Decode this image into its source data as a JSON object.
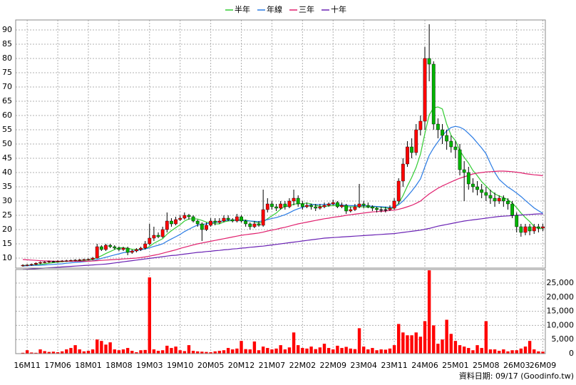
{
  "chart_data": {
    "type": "candlestick",
    "categories": [
      null,
      "16M11",
      null,
      null,
      null,
      null,
      null,
      null,
      "17M06",
      null,
      null,
      null,
      null,
      null,
      null,
      "18M01",
      null,
      null,
      null,
      null,
      null,
      null,
      "18M08",
      null,
      null,
      null,
      null,
      null,
      null,
      "19M03",
      null,
      null,
      null,
      null,
      null,
      null,
      "19M10",
      null,
      null,
      null,
      null,
      null,
      null,
      "20M05",
      null,
      null,
      null,
      null,
      null,
      null,
      "20M12",
      null,
      null,
      null,
      null,
      null,
      null,
      "21M07",
      null,
      null,
      null,
      null,
      null,
      null,
      "22M02",
      null,
      null,
      null,
      null,
      null,
      null,
      "22M09",
      null,
      null,
      null,
      null,
      null,
      null,
      "23M04",
      null,
      null,
      null,
      null,
      null,
      null,
      "23M11",
      null,
      null,
      null,
      null,
      null,
      null,
      "24M06",
      null,
      null,
      null,
      null,
      null,
      null,
      "25M01",
      null,
      null,
      null,
      null,
      null,
      null,
      "25M08",
      null,
      null,
      null,
      null,
      null,
      null,
      "26M03",
      null,
      null,
      null,
      null,
      null,
      "26M09"
    ],
    "open": [
      7.3,
      7.5,
      7.6,
      7.8,
      8.2,
      8.5,
      8.6,
      8.8,
      8.8,
      8.9,
      9.0,
      9.1,
      9.2,
      9.3,
      9.4,
      9.5,
      9.6,
      10.0,
      14.0,
      13.0,
      14.5,
      14.0,
      13.5,
      13.0,
      13.5,
      12.0,
      12.5,
      13.0,
      13.5,
      15.0,
      17.0,
      18.0,
      17.5,
      20.0,
      23.0,
      22.0,
      23.5,
      24.0,
      25.0,
      24.5,
      23.0,
      22.0,
      20.0,
      21.5,
      23.0,
      22.5,
      23.0,
      24.0,
      23.5,
      23.0,
      24.5,
      23.0,
      22.0,
      21.0,
      22.0,
      21.5,
      27.0,
      29.0,
      28.0,
      27.5,
      29.0,
      28.0,
      30.0,
      31.0,
      29.0,
      28.0,
      28.5,
      28.0,
      27.5,
      28.0,
      28.5,
      29.0,
      29.5,
      28.0,
      28.5,
      26.5,
      27.0,
      28.0,
      29.0,
      28.5,
      28.0,
      27.5,
      27.0,
      27.0,
      27.0,
      27.5,
      30,
      37,
      43,
      49,
      47,
      55,
      58,
      80,
      78,
      57,
      55,
      53,
      51,
      49,
      48,
      41,
      40,
      36,
      35,
      34,
      33,
      32,
      31,
      30,
      31,
      30,
      29,
      25,
      21,
      19,
      21,
      19.5,
      21,
      20.5
    ],
    "high": [
      7.8,
      7.9,
      8.1,
      8.5,
      8.8,
      8.9,
      9.1,
      9.1,
      9.2,
      9.3,
      9.4,
      9.5,
      9.6,
      9.7,
      9.8,
      9.9,
      10.4,
      15.0,
      14.5,
      15.0,
      15.0,
      14.5,
      14.0,
      14.0,
      14.0,
      13.0,
      13.5,
      14.0,
      16.0,
      22.0,
      21.0,
      19.0,
      21.0,
      26.0,
      24.0,
      24.5,
      25.0,
      26.0,
      25.5,
      25.0,
      23.5,
      22.5,
      22.5,
      24.0,
      24.0,
      24.0,
      25.0,
      25.0,
      24.0,
      25.5,
      25.0,
      23.5,
      22.5,
      23.0,
      23.0,
      34.0,
      31.0,
      30.0,
      29.0,
      30.0,
      30.0,
      31.0,
      34.0,
      32.0,
      30.0,
      29.5,
      29.0,
      29.0,
      29.0,
      29.5,
      29.5,
      30.5,
      30.0,
      29.5,
      29.0,
      28.0,
      29.0,
      36.0,
      30.0,
      29.5,
      28.5,
      28.0,
      28.0,
      28.0,
      28.5,
      31,
      38,
      45,
      51,
      52,
      57,
      60,
      84,
      92,
      79,
      59,
      57,
      55,
      53,
      51,
      50,
      44,
      42,
      38,
      37,
      36,
      35,
      34,
      33,
      32,
      32,
      31,
      30,
      26,
      22,
      22,
      22,
      22,
      22,
      22
    ],
    "low": [
      7.0,
      7.2,
      7.3,
      7.5,
      7.9,
      8.2,
      8.3,
      8.5,
      8.5,
      8.6,
      8.7,
      8.8,
      8.9,
      9.0,
      9.1,
      9.2,
      9.3,
      9.8,
      12.5,
      12.5,
      13.5,
      13.0,
      12.5,
      12.5,
      11.0,
      11.5,
      12.0,
      12.5,
      13.0,
      14.5,
      16.0,
      17.0,
      17.0,
      19.0,
      21.0,
      21.5,
      23.0,
      23.5,
      23.5,
      22.5,
      21.0,
      16.0,
      19.5,
      21.0,
      21.5,
      22.0,
      22.5,
      23.0,
      22.5,
      22.5,
      22.5,
      21.0,
      20.0,
      20.5,
      21.0,
      21.0,
      26.0,
      27.0,
      26.5,
      27.0,
      27.0,
      27.5,
      28.5,
      28.0,
      27.0,
      27.5,
      27.0,
      26.5,
      27.0,
      27.5,
      28.0,
      28.5,
      27.5,
      27.5,
      25.5,
      26.0,
      26.5,
      27.5,
      27.5,
      27.5,
      26.5,
      26.0,
      26.0,
      26.0,
      26.5,
      27,
      29,
      35,
      42,
      45,
      46,
      53,
      55,
      72,
      55,
      52,
      50,
      48,
      47,
      45,
      39,
      30,
      34,
      33,
      32,
      31,
      30,
      29,
      28,
      29,
      28,
      27,
      24,
      19,
      17.5,
      18,
      18,
      18.5,
      19,
      19.5
    ],
    "close": [
      7.5,
      7.6,
      7.8,
      8.2,
      8.5,
      8.6,
      8.8,
      8.8,
      8.9,
      9.0,
      9.1,
      9.2,
      9.3,
      9.4,
      9.5,
      9.6,
      10.0,
      14.0,
      13.0,
      14.5,
      14.0,
      13.5,
      13.0,
      13.5,
      12.0,
      12.5,
      13.0,
      13.5,
      15.0,
      17.0,
      18.0,
      17.5,
      20.0,
      23.0,
      22.0,
      23.5,
      24.0,
      25.0,
      24.5,
      23.0,
      22.0,
      20.0,
      21.5,
      23.0,
      22.5,
      23.0,
      24.0,
      23.5,
      23.0,
      24.5,
      23.0,
      22.0,
      21.0,
      22.0,
      21.5,
      27.0,
      29.0,
      28.0,
      27.5,
      29.0,
      28.0,
      30.0,
      31.0,
      29.0,
      28.0,
      28.5,
      28.0,
      27.5,
      28.0,
      28.5,
      29.0,
      29.5,
      28.0,
      28.5,
      26.5,
      27.0,
      28.0,
      29.0,
      28.5,
      28.0,
      27.5,
      27.0,
      27.0,
      27.0,
      27.5,
      30,
      37,
      43,
      49,
      47,
      55,
      58,
      80,
      78,
      57,
      55,
      53,
      51,
      49,
      48,
      41,
      40,
      36,
      35,
      34,
      33,
      32,
      31,
      30,
      31,
      30,
      29,
      25,
      21,
      19,
      21,
      19.5,
      21,
      20.5,
      21
    ],
    "up_color": "#ff0000",
    "down_color": "#00b400",
    "series": [
      {
        "name": "半年",
        "color": "#33cc33",
        "values": [
          7.4,
          7.45,
          7.5,
          7.6,
          7.8,
          8.0,
          8.2,
          8.4,
          8.6,
          8.75,
          8.85,
          8.95,
          9.05,
          9.15,
          9.25,
          9.35,
          9.5,
          10.2,
          10.8,
          11.6,
          12.3,
          13.0,
          13.7,
          13.6,
          13.4,
          13.1,
          13.0,
          13.0,
          13.3,
          14.1,
          15.2,
          16.0,
          16.8,
          18.4,
          19.6,
          20.7,
          21.7,
          23.0,
          23.7,
          23.8,
          23.7,
          23.2,
          22.6,
          22.3,
          22.0,
          22.0,
          22.7,
          23.0,
          23.2,
          23.4,
          23.4,
          23.3,
          23.0,
          22.7,
          22.3,
          22.7,
          23.8,
          24.8,
          25.8,
          27.2,
          28.1,
          28.3,
          28.9,
          29.1,
          29.1,
          29.3,
          29.0,
          28.5,
          28.2,
          28.1,
          28.3,
          28.4,
          28.4,
          28.4,
          28.0,
          28.0,
          28.0,
          28.0,
          28.0,
          27.8,
          27.9,
          28.0,
          27.8,
          27.6,
          27.4,
          27.6,
          29.2,
          31.9,
          35.3,
          38.3,
          41.8,
          46.5,
          53.7,
          60.2,
          62.7,
          63.0,
          62.3,
          57.0,
          53.0,
          51.2,
          47.7,
          45.3,
          43.3,
          40.7,
          38.9,
          36.8,
          35.3,
          33.7,
          32.5,
          31.8,
          31.2,
          30.5,
          29.3,
          27.7,
          25.8,
          24.2,
          22.8,
          21.1,
          20.3,
          20.5
        ]
      },
      {
        "name": "年線",
        "color": "#2a7be4",
        "values": [
          7.2,
          7.3,
          7.4,
          7.45,
          7.5,
          7.6,
          7.7,
          7.8,
          7.9,
          8.0,
          8.2,
          8.35,
          8.5,
          8.6,
          8.75,
          8.9,
          9.05,
          9.5,
          9.9,
          10.3,
          10.7,
          11.1,
          11.5,
          11.9,
          12.1,
          12.4,
          12.7,
          12.9,
          13.2,
          13.6,
          14.1,
          14.5,
          15.0,
          15.9,
          16.7,
          17.5,
          18.3,
          19.3,
          20.1,
          20.9,
          21.6,
          21.8,
          22.0,
          22.4,
          22.5,
          22.8,
          23.1,
          23.3,
          23.3,
          23.3,
          23.2,
          23.1,
          23.0,
          22.9,
          22.8,
          23.1,
          23.5,
          23.9,
          24.2,
          24.7,
          25.2,
          25.9,
          26.7,
          27.3,
          27.8,
          28.3,
          28.8,
          28.8,
          28.8,
          28.8,
          28.9,
          29.0,
          28.8,
          28.6,
          28.5,
          28.4,
          28.4,
          28.4,
          28.4,
          28.3,
          28.2,
          28.1,
          28.0,
          27.9,
          27.8,
          27.9,
          28.7,
          30.0,
          31.7,
          33.5,
          35.5,
          37.8,
          42.0,
          46.0,
          48.6,
          50.8,
          52.9,
          54.6,
          55.8,
          56.2,
          55.9,
          55.1,
          53.7,
          52.2,
          50.4,
          48.6,
          46.6,
          43.2,
          40.0,
          37.6,
          36.2,
          34.9,
          33.9,
          32.8,
          31.6,
          30.2,
          28.9,
          27.6,
          26.6,
          25.7
        ]
      },
      {
        "name": "三年",
        "color": "#e0206e",
        "values": [
          9.5,
          9.4,
          9.3,
          9.2,
          9.1,
          9.0,
          9.0,
          8.9,
          8.9,
          8.9,
          8.9,
          8.9,
          8.9,
          8.9,
          8.9,
          8.9,
          9.0,
          9.1,
          9.2,
          9.3,
          9.4,
          9.5,
          9.6,
          9.7,
          9.8,
          9.9,
          10.0,
          10.2,
          10.4,
          10.7,
          11.0,
          11.3,
          11.7,
          12.1,
          12.5,
          12.9,
          13.4,
          13.8,
          14.2,
          14.6,
          15.0,
          15.3,
          15.6,
          15.9,
          16.2,
          16.5,
          16.8,
          17.1,
          17.4,
          17.7,
          18.0,
          18.2,
          18.4,
          18.6,
          18.8,
          19.1,
          19.5,
          19.8,
          20.1,
          20.5,
          20.8,
          21.2,
          21.6,
          22.0,
          22.3,
          22.6,
          22.9,
          23.2,
          23.5,
          23.8,
          24.0,
          24.3,
          24.5,
          24.7,
          25.0,
          25.2,
          25.4,
          25.6,
          25.8,
          26.0,
          26.2,
          26.3,
          26.4,
          26.5,
          26.7,
          26.8,
          27.1,
          27.5,
          28.0,
          28.5,
          29.2,
          30.0,
          31.3,
          32.5,
          33.5,
          34.5,
          35.3,
          36.0,
          36.7,
          37.4,
          38.0,
          38.5,
          39.0,
          39.5,
          39.8,
          40.0,
          40.2,
          40.3,
          40.4,
          40.5,
          40.5,
          40.4,
          40.3,
          40.1,
          39.9,
          39.6,
          39.4,
          39.2,
          39.1,
          38.9
        ]
      },
      {
        "name": "十年",
        "color": "#6a22b4",
        "values": [
          6.0,
          6.1,
          6.2,
          6.3,
          6.4,
          6.5,
          6.6,
          6.7,
          6.8,
          6.9,
          7.0,
          7.1,
          7.2,
          7.3,
          7.4,
          7.5,
          7.6,
          7.7,
          7.8,
          7.9,
          8.1,
          8.3,
          8.5,
          8.7,
          8.9,
          9.1,
          9.3,
          9.5,
          9.7,
          9.9,
          10.1,
          10.3,
          10.5,
          10.7,
          10.9,
          11.0,
          11.2,
          11.4,
          11.6,
          11.8,
          12.0,
          12.1,
          12.3,
          12.4,
          12.6,
          12.7,
          12.9,
          13.0,
          13.2,
          13.3,
          13.5,
          13.6,
          13.8,
          13.9,
          14.1,
          14.2,
          14.4,
          14.6,
          14.8,
          15.0,
          15.2,
          15.4,
          15.6,
          15.8,
          16.0,
          16.2,
          16.4,
          16.6,
          16.8,
          17.0,
          17.1,
          17.2,
          17.3,
          17.4,
          17.5,
          17.6,
          17.7,
          17.8,
          17.9,
          18.0,
          18.1,
          18.2,
          18.3,
          18.4,
          18.5,
          18.6,
          18.8,
          19.0,
          19.2,
          19.4,
          19.6,
          19.8,
          20.1,
          20.4,
          20.8,
          21.2,
          21.5,
          21.8,
          22.1,
          22.4,
          22.7,
          23.0,
          23.2,
          23.4,
          23.6,
          23.8,
          24.0,
          24.2,
          24.4,
          24.6,
          24.7,
          24.8,
          24.9,
          25.0,
          25.1,
          25.2,
          25.3,
          25.4,
          25.5,
          25.5
        ]
      }
    ],
    "ylim": [
      6.5,
      93.5
    ],
    "yticks": [
      10,
      15,
      20,
      25,
      30,
      35,
      40,
      45,
      50,
      55,
      60,
      65,
      70,
      75,
      80,
      85,
      90
    ],
    "grid": true,
    "volume": {
      "color": "#ff0000",
      "values": [
        300,
        1200,
        400,
        300,
        1500,
        900,
        600,
        700,
        500,
        800,
        1500,
        2000,
        3000,
        1500,
        800,
        1000,
        1500,
        5000,
        4500,
        3200,
        4000,
        1500,
        1200,
        1500,
        2000,
        1000,
        500,
        1200,
        1300,
        27000,
        1500,
        1000,
        1200,
        2800,
        2000,
        2500,
        1200,
        900,
        3000,
        1000,
        800,
        700,
        600,
        500,
        800,
        1000,
        1200,
        2000,
        1500,
        1800,
        4500,
        1600,
        1500,
        4300,
        1200,
        2500,
        2000,
        1500,
        1800,
        3000,
        1500,
        2200,
        7500,
        3000,
        2000,
        1800,
        2500,
        1600,
        2200,
        3500,
        2000,
        1500,
        2800,
        2000,
        2400,
        1800,
        1600,
        9000,
        2500,
        1500,
        2000,
        1200,
        1500,
        1400,
        1800,
        3000,
        10500,
        7500,
        6500,
        6500,
        7500,
        6000,
        11500,
        29500,
        10000,
        3500,
        5000,
        12000,
        7000,
        4500,
        3000,
        2500,
        2000,
        1200,
        3000,
        2000,
        11500,
        1500,
        1500,
        1000,
        1500,
        800,
        1200,
        1200,
        1800,
        2500,
        4500,
        1500,
        800,
        700
      ],
      "ylim": [
        0,
        29800
      ],
      "yticks": [
        {
          "value": 0,
          "label": "0"
        },
        {
          "value": 5000,
          "label": "5,000"
        },
        {
          "value": 10000,
          "label": "10,000"
        },
        {
          "value": 15000,
          "label": "15,000"
        },
        {
          "value": 20000,
          "label": "20,000"
        },
        {
          "value": 25000,
          "label": "25,000"
        }
      ]
    },
    "footer": "資料日期: 09/17 (Goodinfo.tw)"
  }
}
